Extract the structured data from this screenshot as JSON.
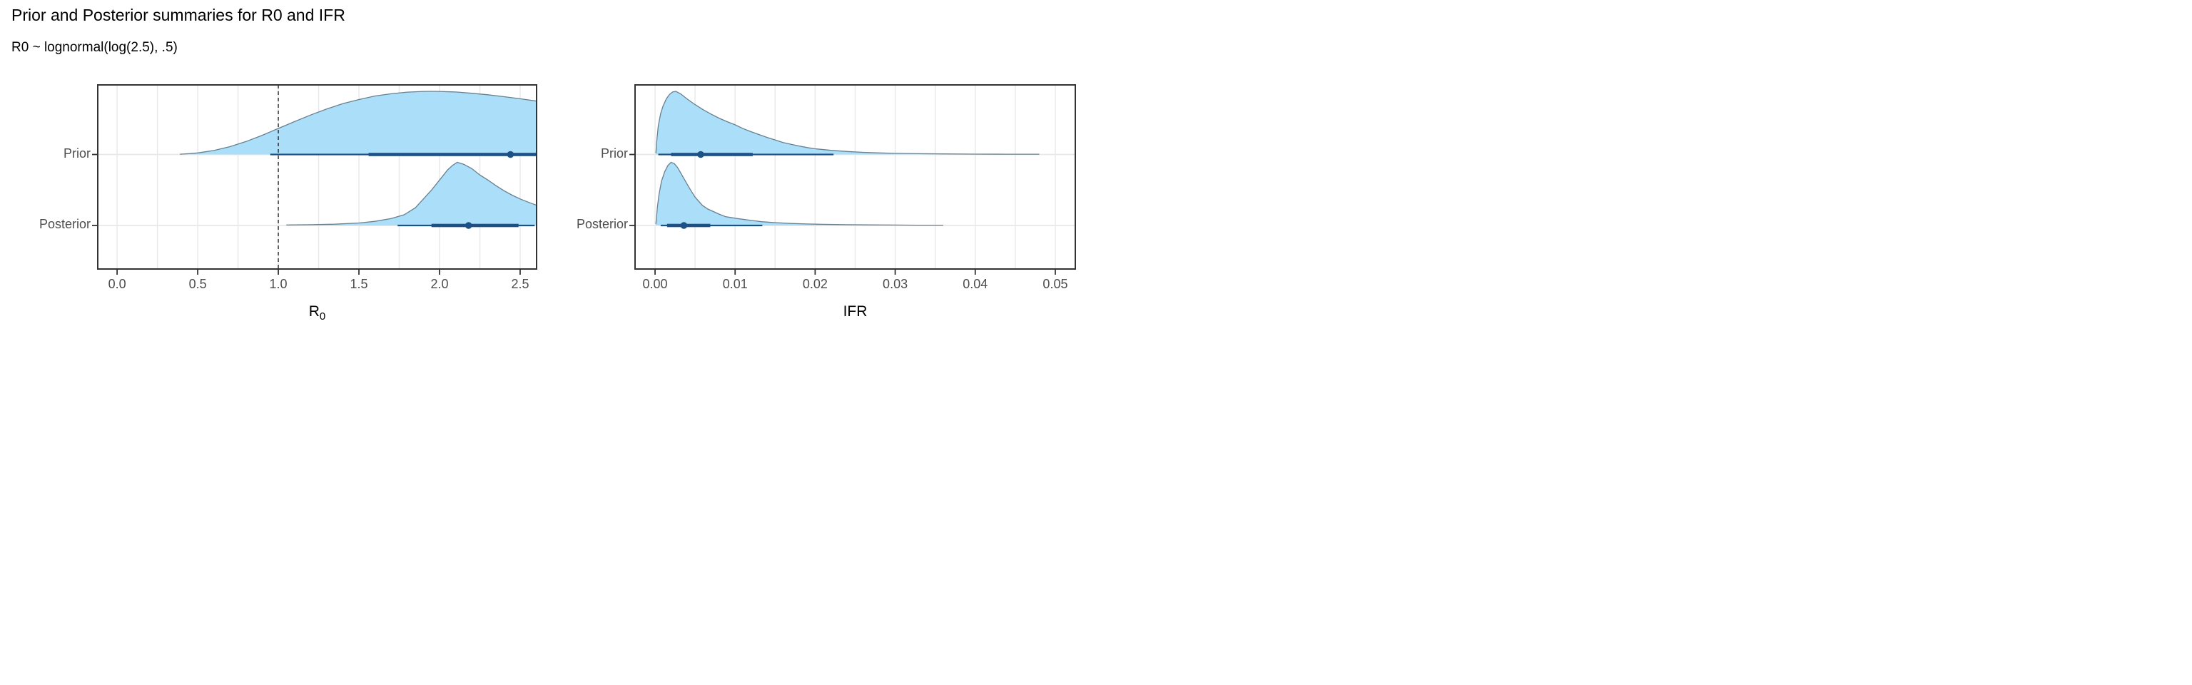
{
  "title": "Prior and Posterior summaries for R0 and IFR",
  "subtitle": "R0 ~ lognormal(log(2.5), .5)",
  "rows": [
    "Prior",
    "Posterior"
  ],
  "colors": {
    "density_fill": "#ABDEF8",
    "density_stroke": "#68808F",
    "interval": "#1D5084",
    "grid": "#E8E8E8",
    "panel_border": "#333333",
    "tick_mark": "#333333",
    "axis_text": "#4D4D4D",
    "title_text": "#000000",
    "reference_line": "#1A1A1A",
    "background": "#FFFFFF"
  },
  "chart_data": [
    {
      "type": "area",
      "panel": "R0",
      "xlabel": {
        "text": "R",
        "sub": "0"
      },
      "xlim": [
        -0.12,
        2.602
      ],
      "x_ticks": [
        0.0,
        0.5,
        1.0,
        1.5,
        2.0,
        2.5
      ],
      "x_tick_labels": [
        "0.0",
        "0.5",
        "1.0",
        "1.5",
        "2.0",
        "2.5"
      ],
      "grid_step": 0.25,
      "reference_line_x": 1.0,
      "series": [
        {
          "name": "Prior",
          "row": 0,
          "point_median": 2.44,
          "interval_66": [
            1.56,
            2.602
          ],
          "interval_95": [
            0.95,
            2.602
          ],
          "density": [
            [
              0.39,
              0.005
            ],
            [
              0.45,
              0.013
            ],
            [
              0.5,
              0.025
            ],
            [
              0.6,
              0.063
            ],
            [
              0.7,
              0.124
            ],
            [
              0.8,
              0.206
            ],
            [
              0.9,
              0.304
            ],
            [
              1.0,
              0.412
            ],
            [
              1.1,
              0.52
            ],
            [
              1.2,
              0.625
            ],
            [
              1.3,
              0.72
            ],
            [
              1.4,
              0.804
            ],
            [
              1.5,
              0.87
            ],
            [
              1.6,
              0.926
            ],
            [
              1.7,
              0.962
            ],
            [
              1.8,
              0.988
            ],
            [
              1.9,
              0.999
            ],
            [
              1.95,
              1.0
            ],
            [
              2.0,
              0.999
            ],
            [
              2.1,
              0.99
            ],
            [
              2.2,
              0.97
            ],
            [
              2.3,
              0.946
            ],
            [
              2.4,
              0.915
            ],
            [
              2.5,
              0.883
            ],
            [
              2.602,
              0.845
            ]
          ]
        },
        {
          "name": "Posterior",
          "row": 1,
          "point_median": 2.18,
          "interval_66": [
            1.95,
            2.49
          ],
          "interval_95": [
            1.74,
            2.59
          ],
          "density": [
            [
              1.05,
              0.008
            ],
            [
              1.2,
              0.012
            ],
            [
              1.35,
              0.02
            ],
            [
              1.5,
              0.04
            ],
            [
              1.6,
              0.065
            ],
            [
              1.7,
              0.11
            ],
            [
              1.78,
              0.17
            ],
            [
              1.85,
              0.28
            ],
            [
              1.9,
              0.42
            ],
            [
              1.95,
              0.56
            ],
            [
              2.0,
              0.72
            ],
            [
              2.05,
              0.88
            ],
            [
              2.08,
              0.95
            ],
            [
              2.11,
              1.0
            ],
            [
              2.15,
              0.97
            ],
            [
              2.2,
              0.9
            ],
            [
              2.25,
              0.8
            ],
            [
              2.3,
              0.72
            ],
            [
              2.35,
              0.63
            ],
            [
              2.4,
              0.55
            ],
            [
              2.45,
              0.48
            ],
            [
              2.5,
              0.42
            ],
            [
              2.55,
              0.37
            ],
            [
              2.602,
              0.32
            ]
          ]
        }
      ]
    },
    {
      "type": "area",
      "panel": "IFR",
      "xlabel": {
        "text": "IFR",
        "sub": ""
      },
      "xlim": [
        -0.0025,
        0.0525
      ],
      "x_ticks": [
        0.0,
        0.01,
        0.02,
        0.03,
        0.04,
        0.05
      ],
      "x_tick_labels": [
        "0.00",
        "0.01",
        "0.02",
        "0.03",
        "0.04",
        "0.05"
      ],
      "grid_step": 0.005,
      "reference_line_x": null,
      "series": [
        {
          "name": "Prior",
          "row": 0,
          "point_median": 0.0057,
          "interval_66": [
            0.002,
            0.0122
          ],
          "interval_95": [
            0.0004,
            0.0223
          ],
          "density": [
            [
              0.0001,
              0.02
            ],
            [
              0.0002,
              0.2
            ],
            [
              0.0004,
              0.45
            ],
            [
              0.0007,
              0.65
            ],
            [
              0.001,
              0.77
            ],
            [
              0.0014,
              0.88
            ],
            [
              0.0018,
              0.95
            ],
            [
              0.0022,
              0.99
            ],
            [
              0.0026,
              1.0
            ],
            [
              0.0032,
              0.96
            ],
            [
              0.004,
              0.88
            ],
            [
              0.005,
              0.79
            ],
            [
              0.006,
              0.71
            ],
            [
              0.007,
              0.64
            ],
            [
              0.008,
              0.575
            ],
            [
              0.009,
              0.52
            ],
            [
              0.01,
              0.47
            ],
            [
              0.011,
              0.41
            ],
            [
              0.012,
              0.36
            ],
            [
              0.013,
              0.315
            ],
            [
              0.014,
              0.27
            ],
            [
              0.015,
              0.23
            ],
            [
              0.016,
              0.19
            ],
            [
              0.017,
              0.16
            ],
            [
              0.018,
              0.135
            ],
            [
              0.019,
              0.11
            ],
            [
              0.02,
              0.09
            ],
            [
              0.022,
              0.065
            ],
            [
              0.024,
              0.047
            ],
            [
              0.026,
              0.034
            ],
            [
              0.028,
              0.025
            ],
            [
              0.03,
              0.018
            ],
            [
              0.033,
              0.012
            ],
            [
              0.036,
              0.009
            ],
            [
              0.04,
              0.006
            ],
            [
              0.044,
              0.005
            ],
            [
              0.048,
              0.004
            ]
          ]
        },
        {
          "name": "Posterior",
          "row": 1,
          "point_median": 0.0036,
          "interval_66": [
            0.0015,
            0.0069
          ],
          "interval_95": [
            0.0007,
            0.0134
          ],
          "density": [
            [
              0.0001,
              0.02
            ],
            [
              0.0003,
              0.3
            ],
            [
              0.0005,
              0.5
            ],
            [
              0.0008,
              0.7
            ],
            [
              0.0012,
              0.85
            ],
            [
              0.0016,
              0.95
            ],
            [
              0.002,
              1.0
            ],
            [
              0.0024,
              0.98
            ],
            [
              0.0028,
              0.92
            ],
            [
              0.0033,
              0.81
            ],
            [
              0.0038,
              0.7
            ],
            [
              0.0044,
              0.57
            ],
            [
              0.005,
              0.45
            ],
            [
              0.0059,
              0.32
            ],
            [
              0.0066,
              0.26
            ],
            [
              0.0073,
              0.22
            ],
            [
              0.008,
              0.18
            ],
            [
              0.0088,
              0.14
            ],
            [
              0.0103,
              0.11
            ],
            [
              0.012,
              0.08
            ],
            [
              0.0133,
              0.06
            ],
            [
              0.015,
              0.045
            ],
            [
              0.017,
              0.032
            ],
            [
              0.019,
              0.024
            ],
            [
              0.021,
              0.018
            ],
            [
              0.024,
              0.012
            ],
            [
              0.027,
              0.009
            ],
            [
              0.03,
              0.007
            ],
            [
              0.033,
              0.005
            ],
            [
              0.036,
              0.004
            ]
          ]
        }
      ]
    }
  ]
}
